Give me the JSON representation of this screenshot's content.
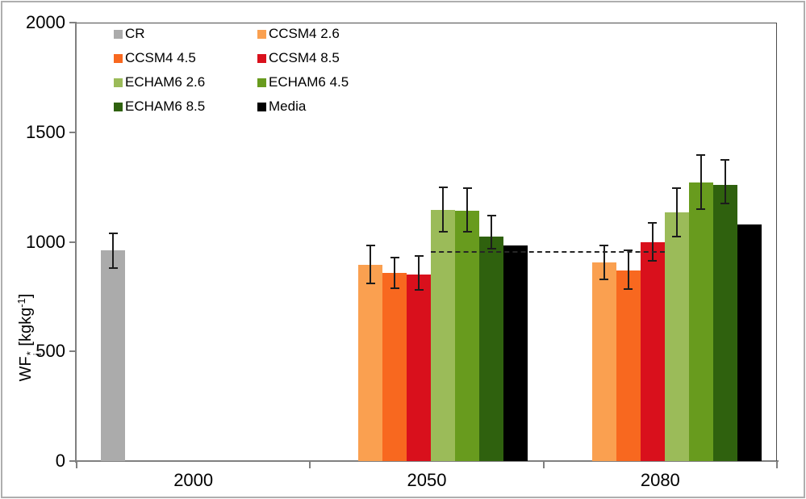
{
  "figure": {
    "background": "#ffffff",
    "border_color": "#aeaeae"
  },
  "chart_data": {
    "type": "bar",
    "title": "",
    "xlabel": "",
    "ylabel": {
      "prefix": "WF",
      "superscript": "*",
      "subscript": "i",
      "unit_open": " [kgkg",
      "unit_exponent": "-1",
      "unit_close": "]"
    },
    "categories": [
      "2000",
      "2050",
      "2080"
    ],
    "y_axis": {
      "min": 0,
      "max": 2000,
      "ticks": [
        0,
        500,
        1000,
        1500,
        2000
      ]
    },
    "grid": "off",
    "legend_position": "top-left-inside",
    "error_bar_color": "#1c1c1c",
    "series": [
      {
        "name": "CR",
        "color": "#ababab",
        "values": [
          960,
          null,
          null
        ],
        "err_low": [
          880,
          null,
          null
        ],
        "err_high": [
          1040,
          null,
          null
        ]
      },
      {
        "name": "CCSM4 2.6",
        "color": "#faa050",
        "values": [
          null,
          895,
          905
        ],
        "err_low": [
          null,
          810,
          830
        ],
        "err_high": [
          null,
          985,
          985
        ]
      },
      {
        "name": "CCSM4 4.5",
        "color": "#f8681f",
        "values": [
          null,
          860,
          870
        ],
        "err_low": [
          null,
          790,
          785
        ],
        "err_high": [
          null,
          930,
          960
        ]
      },
      {
        "name": "CCSM4 8.5",
        "color": "#d9101c",
        "values": [
          null,
          850,
          1000
        ],
        "err_low": [
          null,
          780,
          915
        ],
        "err_high": [
          null,
          935,
          1085
        ]
      },
      {
        "name": "ECHAM6 2.6",
        "color": "#9bbb59",
        "values": [
          null,
          1145,
          1135
        ],
        "err_low": [
          null,
          1045,
          1025
        ],
        "err_high": [
          null,
          1250,
          1245
        ]
      },
      {
        "name": "ECHAM6 4.5",
        "color": "#689b1e",
        "values": [
          null,
          1140,
          1270
        ],
        "err_low": [
          null,
          1045,
          1150
        ],
        "err_high": [
          null,
          1245,
          1395
        ]
      },
      {
        "name": "ECHAM6 8.5",
        "color": "#2f610e",
        "values": [
          null,
          1025,
          1260
        ],
        "err_low": [
          null,
          970,
          1175
        ],
        "err_high": [
          null,
          1120,
          1375
        ]
      },
      {
        "name": "Media",
        "color": "#000000",
        "values": [
          null,
          985,
          1080
        ],
        "err_low": [
          null,
          null,
          null
        ],
        "err_high": [
          null,
          null,
          null
        ]
      }
    ],
    "reference_line": {
      "value": 955,
      "style": "dashed",
      "color": "#262626",
      "from_category": 1,
      "from_series": 4,
      "to_category": 2,
      "to_series": 4
    }
  }
}
